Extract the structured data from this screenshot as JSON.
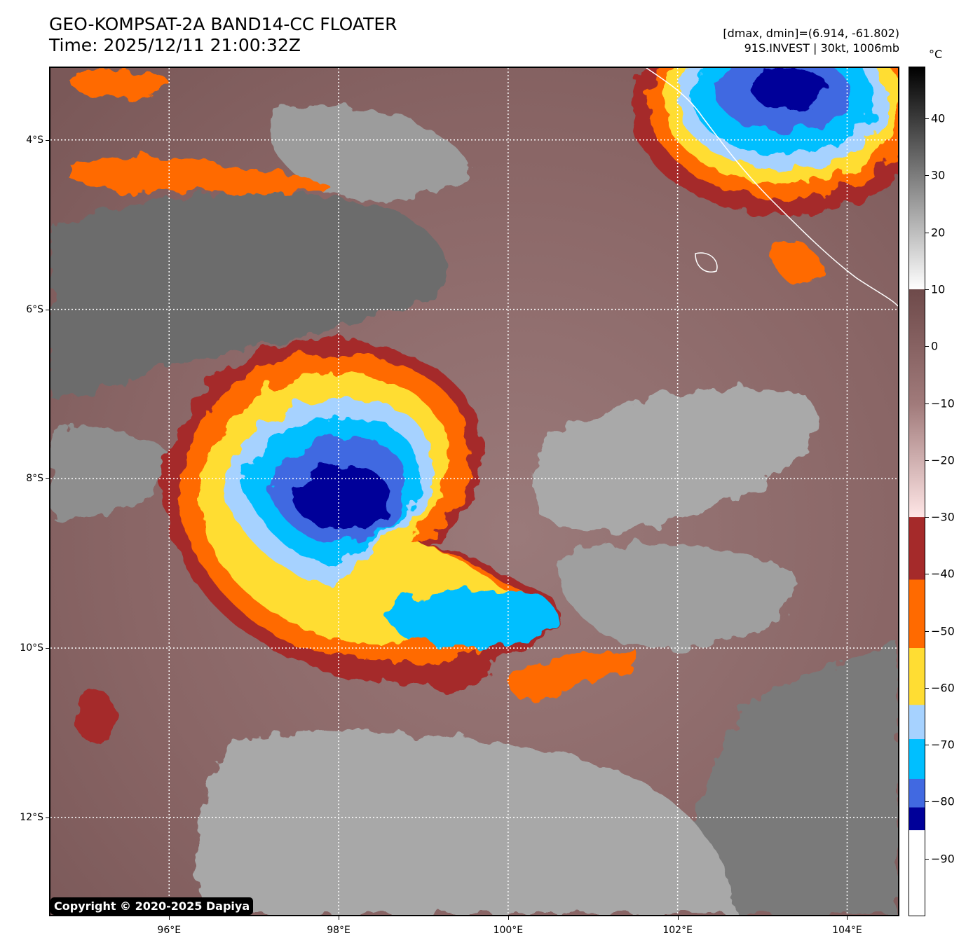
{
  "header": {
    "title_line1": "GEO-KOMPSAT-2A BAND14-CC FLOATER",
    "title_line2": "Time: 2025/12/11 21:00:32Z",
    "info_line1": "[dmax, dmin]=(6.914, -61.802)",
    "info_line2": "91S.INVEST | 30kt, 1006mb"
  },
  "map": {
    "lon_range": [
      94.6,
      104.6
    ],
    "lat_range": [
      -3.15,
      -13.15
    ],
    "lat_ticks": [
      {
        "value": -4,
        "label": "4°S"
      },
      {
        "value": -6,
        "label": "6°S"
      },
      {
        "value": -8,
        "label": "8°S"
      },
      {
        "value": -10,
        "label": "10°S"
      },
      {
        "value": -12,
        "label": "12°S"
      }
    ],
    "lon_ticks": [
      {
        "value": 96,
        "label": "96°E"
      },
      {
        "value": 98,
        "label": "98°E"
      },
      {
        "value": 100,
        "label": "100°E"
      },
      {
        "value": 102,
        "label": "102°E"
      },
      {
        "value": 104,
        "label": "104°E"
      }
    ],
    "storm_center": {
      "lon": 98.0,
      "lat": -8.1
    },
    "copyright": "Copyright © 2020-2025 Dapiya"
  },
  "colorbar": {
    "unit": "°C",
    "range": [
      -100,
      49
    ],
    "labels": [
      40,
      30,
      20,
      10,
      0,
      -10,
      -20,
      -30,
      -40,
      -50,
      -60,
      -70,
      -80,
      -90
    ],
    "label_text": [
      "40",
      "30",
      "20",
      "10",
      "0",
      "−10",
      "−20",
      "−30",
      "−40",
      "−50",
      "−60",
      "−70",
      "−80",
      "−90"
    ],
    "segments": [
      {
        "from": 49,
        "to": 10,
        "type": "gradient",
        "colors": [
          "#000000",
          "#808080",
          "#ffffff"
        ]
      },
      {
        "from": 10,
        "to": -30,
        "type": "gradient",
        "colors": [
          "#6e4a4a",
          "#a07a7a",
          "#ffe6e6"
        ]
      },
      {
        "from": -30,
        "to": -41,
        "color": "#a52a2a"
      },
      {
        "from": -41,
        "to": -53,
        "color": "#ff6a00"
      },
      {
        "from": -53,
        "to": -63,
        "color": "#ffdd33"
      },
      {
        "from": -63,
        "to": -69,
        "color": "#a6d2ff"
      },
      {
        "from": -69,
        "to": -76,
        "color": "#00bfff"
      },
      {
        "from": -76,
        "to": -81,
        "color": "#4169e1"
      },
      {
        "from": -81,
        "to": -85,
        "color": "#000099"
      },
      {
        "from": -85,
        "to": -100,
        "color": "#ffffff"
      }
    ]
  }
}
